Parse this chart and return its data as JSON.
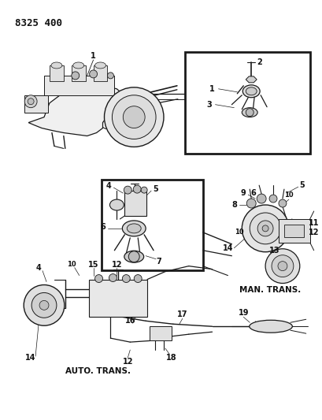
{
  "title_code": "8325 400",
  "bg_color": "#ffffff",
  "line_color": "#1a1a1a",
  "text_color": "#111111",
  "fig_width": 4.1,
  "fig_height": 5.33,
  "dpi": 100,
  "labels": {
    "auto_trans": "AUTO. TRANS.",
    "man_trans": "MAN. TRANS."
  }
}
